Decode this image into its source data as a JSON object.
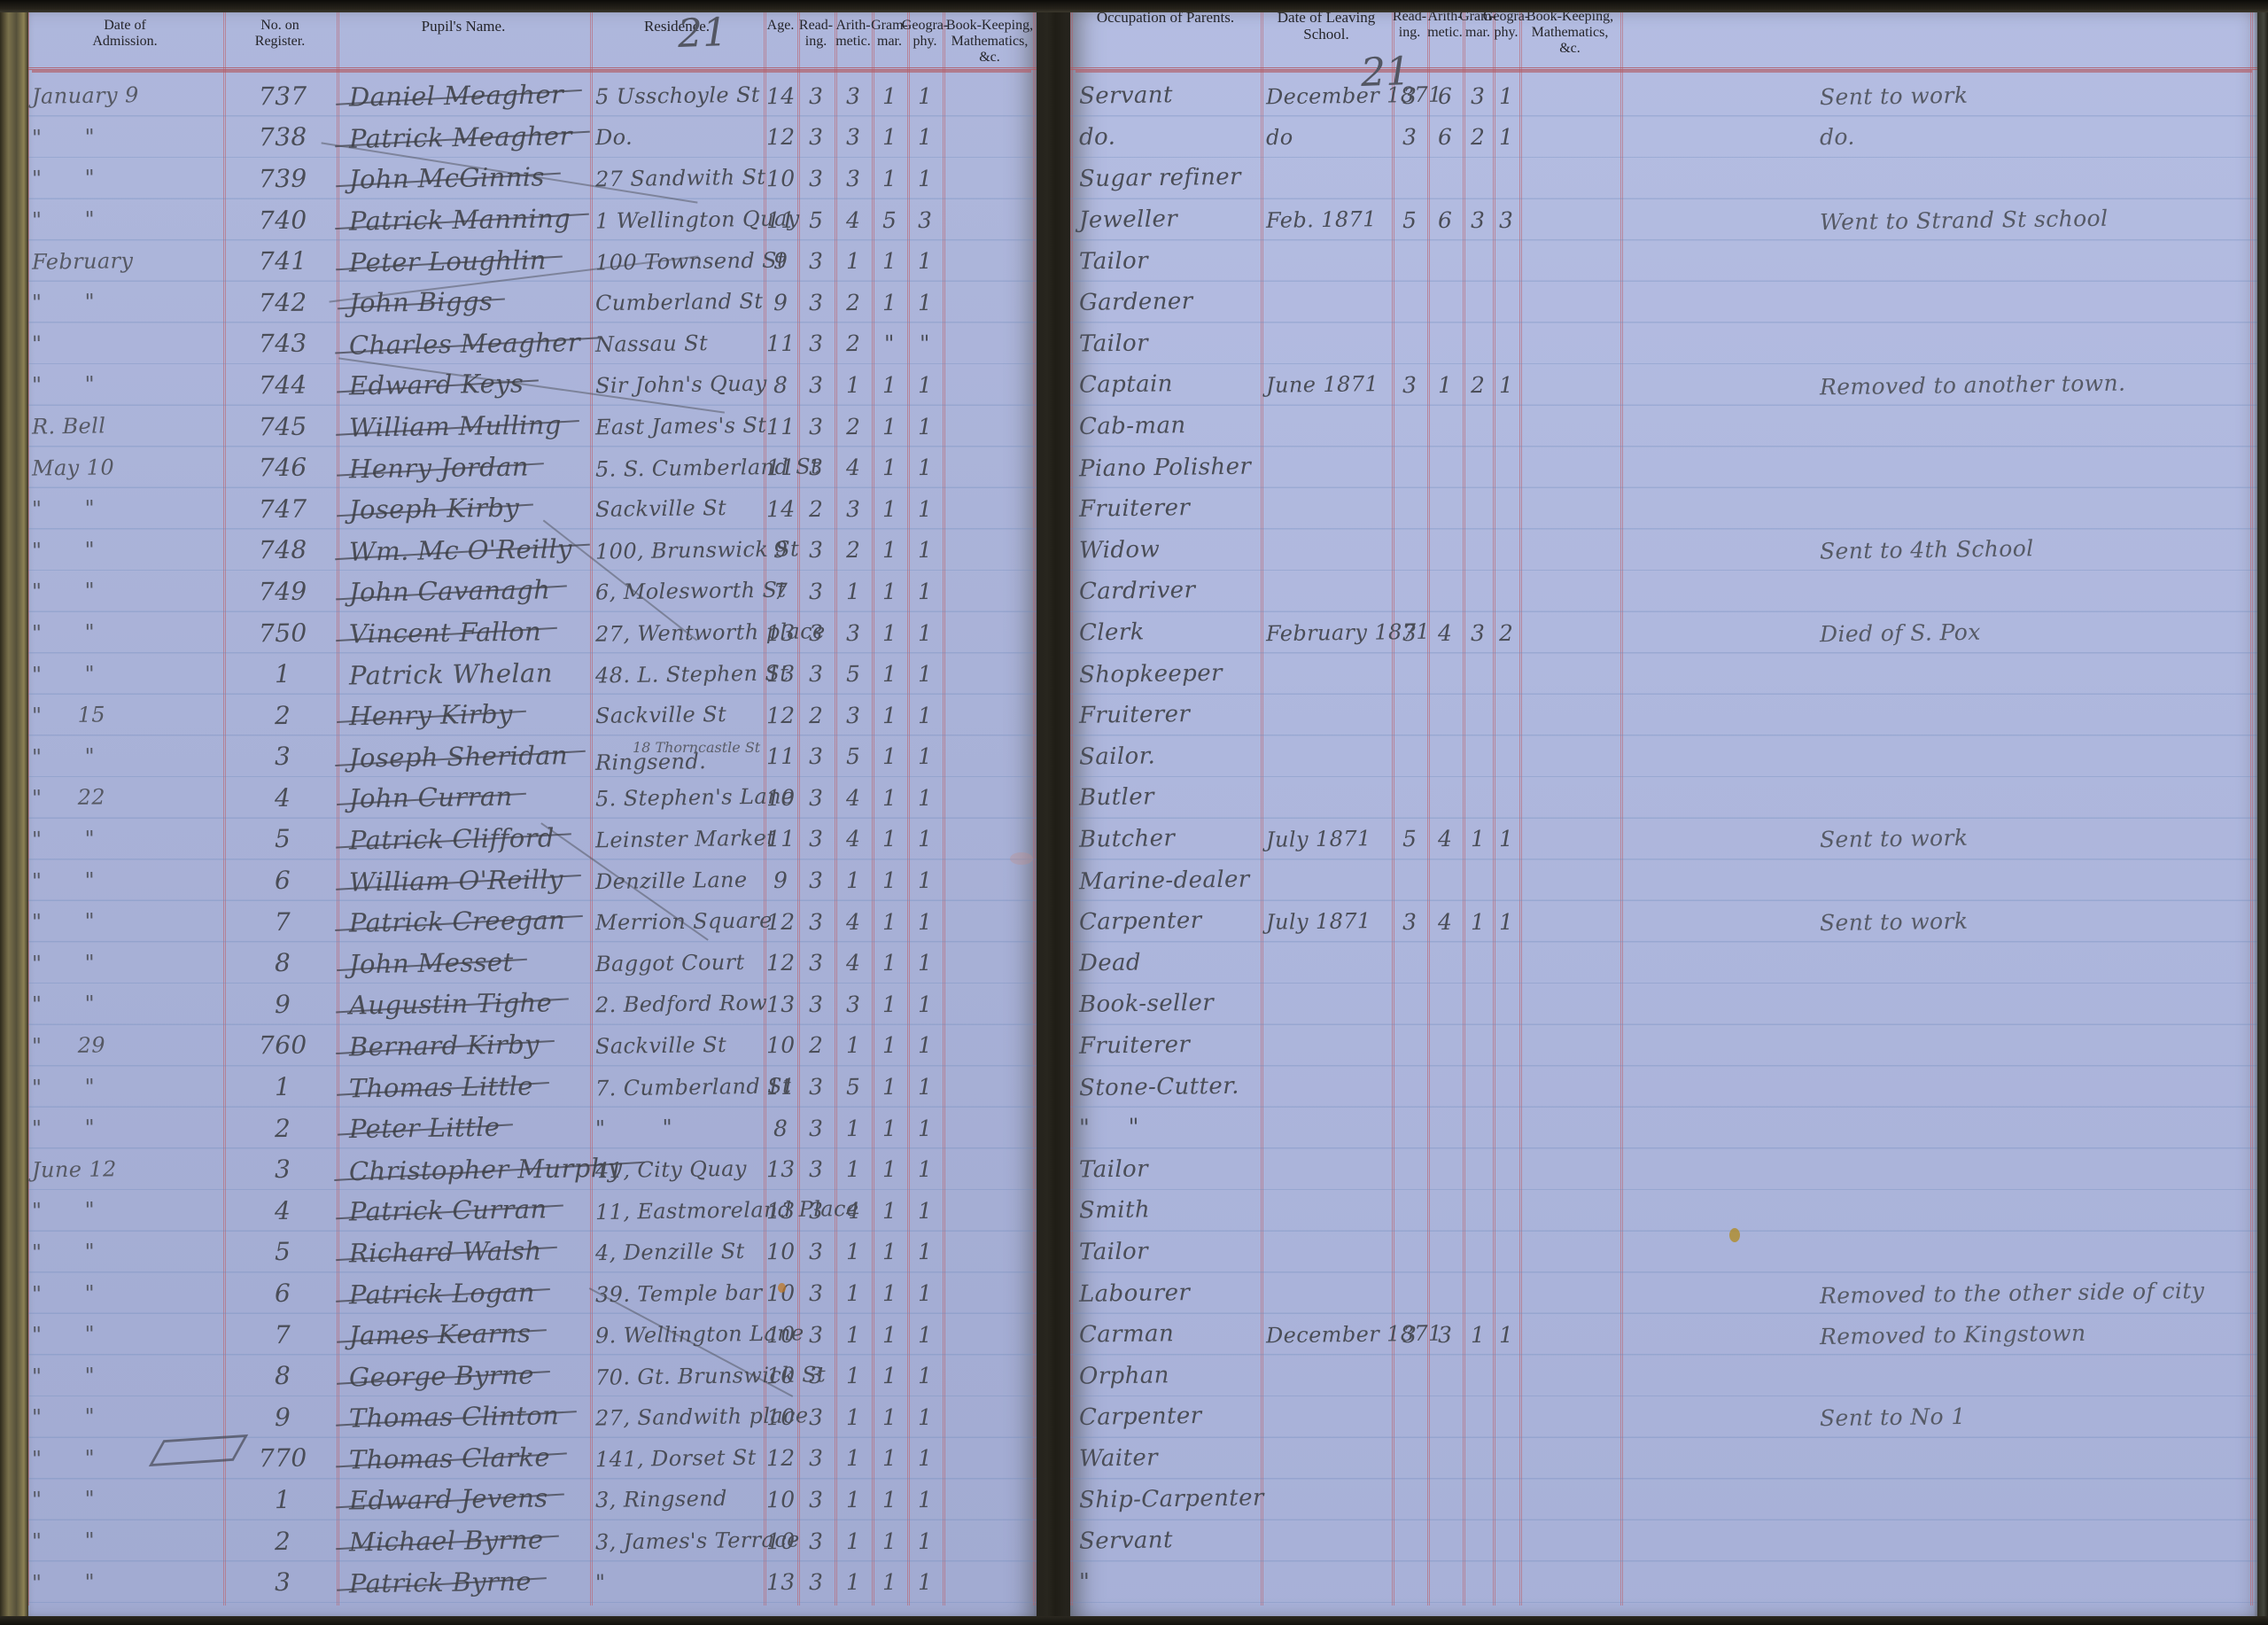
{
  "document": {
    "kind": "handwritten school register spread",
    "page_number_pencil": "21",
    "colors": {
      "paper_left": "#aab3da",
      "paper_right": "#b0b9e0",
      "rule_red": "#ba646e",
      "faint_line_blue": "#6987b9",
      "ink": "#4a4d57",
      "printed_ink": "#25252a",
      "pencil": "#535662"
    },
    "left_page": {
      "headers": {
        "admission": "Date of\nAdmission.",
        "register": "No. on\nRegister.",
        "name": "Pupil's Name.",
        "residence": "Residence.",
        "age": "Age.",
        "reading": "Read-\ning.",
        "arithmetic": "Arith-\nmetic.",
        "grammar": "Gram-\nmar.",
        "geography": "Geogra-\nphy.",
        "bookkeeping": "Book-Keeping,\nMathematics, &c."
      }
    },
    "right_page": {
      "headers": {
        "occupation": "Occupation of Parents.",
        "leaving": "Date of Leaving School.",
        "reading": "Read-\ning.",
        "arithmetic": "Arith-\nmetic.",
        "grammar": "Gram-\nmar.",
        "geography": "Geogra-\nphy.",
        "mathematics": "Book-Keeping,\nMathematics, &c.",
        "remarks": ""
      }
    },
    "rows": [
      {
        "admission": "January 9",
        "register": "737",
        "name": "Daniel Meagher",
        "struck": true,
        "residence": "5 Usschoyle St",
        "age": "14",
        "reading": "3",
        "arithmetic": "3",
        "grammar": "1",
        "geography": "1",
        "occupation": "Servant",
        "leaving": "December 1871",
        "l_reading": "3",
        "l_arithmetic": "6",
        "l_grammar": "3",
        "l_geography": "1",
        "remarks": "Sent to work"
      },
      {
        "admission": "\"      \"",
        "register": "738",
        "name": "Patrick Meagher",
        "struck": true,
        "residence": "Do.",
        "age": "12",
        "reading": "3",
        "arithmetic": "3",
        "grammar": "1",
        "geography": "1",
        "occupation": "do.",
        "leaving": "do",
        "l_reading": "3",
        "l_arithmetic": "6",
        "l_grammar": "2",
        "l_geography": "1",
        "remarks": "do."
      },
      {
        "admission": "\"      \"",
        "register": "739",
        "name": "John McGinnis",
        "struck": true,
        "residence": "27 Sandwith St",
        "age": "10",
        "reading": "3",
        "arithmetic": "3",
        "grammar": "1",
        "geography": "1",
        "occupation": "Sugar refiner"
      },
      {
        "admission": "\"      \"",
        "register": "740",
        "name": "Patrick Manning",
        "struck": true,
        "residence": "1 Wellington Quay",
        "age": "11",
        "reading": "5",
        "arithmetic": "4",
        "grammar": "5",
        "geography": "3",
        "occupation": "Jeweller",
        "leaving": "Feb. 1871",
        "l_reading": "5",
        "l_arithmetic": "6",
        "l_grammar": "3",
        "l_geography": "3",
        "remarks": "Went to Strand St school"
      },
      {
        "admission": "February",
        "register": "741",
        "name": "Peter Loughlin",
        "struck": true,
        "residence": "100 Townsend St",
        "age": "9",
        "reading": "3",
        "arithmetic": "1",
        "grammar": "1",
        "geography": "1",
        "occupation": "Tailor"
      },
      {
        "admission": "\"      \"",
        "register": "742",
        "name": "John Biggs",
        "struck": true,
        "residence": "Cumberland St",
        "age": "9",
        "reading": "3",
        "arithmetic": "2",
        "grammar": "1",
        "geography": "1",
        "occupation": "Gardener"
      },
      {
        "admission": "\"",
        "register": "743",
        "name": "Charles Meagher",
        "struck": true,
        "residence": "Nassau St",
        "age": "11",
        "reading": "3",
        "arithmetic": "2",
        "grammar": "\"",
        "geography": "\"",
        "occupation": "Tailor"
      },
      {
        "admission": "\"      \"",
        "register": "744",
        "name": "Edward Keys",
        "struck": true,
        "residence": "Sir John's Quay",
        "age": "8",
        "reading": "3",
        "arithmetic": "1",
        "grammar": "1",
        "geography": "1",
        "occupation": "Captain",
        "leaving": "June 1871",
        "l_reading": "3",
        "l_arithmetic": "1",
        "l_grammar": "2",
        "l_geography": "1",
        "remarks": "Removed to another town."
      },
      {
        "admission": "R. Bell",
        "register": "745",
        "name": "William Mulling",
        "struck": true,
        "residence": "East James's St",
        "age": "11",
        "reading": "3",
        "arithmetic": "2",
        "grammar": "1",
        "geography": "1",
        "occupation": "Cab-man"
      },
      {
        "admission": "May 10",
        "register": "746",
        "name": "Henry Jordan",
        "struck": true,
        "residence": "5. S. Cumberland St",
        "age": "11",
        "reading": "3",
        "arithmetic": "4",
        "grammar": "1",
        "geography": "1",
        "occupation": "Piano Polisher"
      },
      {
        "admission": "\"      \"",
        "register": "747",
        "name": "Joseph Kirby",
        "struck": true,
        "residence": "Sackville St",
        "age": "14",
        "reading": "2",
        "arithmetic": "3",
        "grammar": "1",
        "geography": "1",
        "occupation": "Fruiterer"
      },
      {
        "admission": "\"      \"",
        "register": "748",
        "name": "Wm. Mc O'Reilly",
        "struck": true,
        "residence": "100, Brunswick St",
        "age": "9",
        "reading": "3",
        "arithmetic": "2",
        "grammar": "1",
        "geography": "1",
        "occupation": "Widow",
        "remarks": "Sent to 4th School"
      },
      {
        "admission": "\"      \"",
        "register": "749",
        "name": "John Cavanagh",
        "struck": true,
        "residence": "6, Molesworth St",
        "age": "7",
        "reading": "3",
        "arithmetic": "1",
        "grammar": "1",
        "geography": "1",
        "occupation": "Cardriver"
      },
      {
        "admission": "\"      \"",
        "register": "750",
        "name": "Vincent Fallon",
        "struck": true,
        "residence": "27, Wentworth place",
        "age": "13",
        "reading": "3",
        "arithmetic": "3",
        "grammar": "1",
        "geography": "1",
        "occupation": "Clerk",
        "leaving": "February 1871",
        "l_reading": "3",
        "l_arithmetic": "4",
        "l_grammar": "3",
        "l_geography": "2",
        "remarks": "Died of S. Pox"
      },
      {
        "admission": "\"      \"",
        "register": "1",
        "name": "Patrick Whelan",
        "struck": false,
        "residence": "48. L. Stephen St",
        "age": "13",
        "reading": "3",
        "arithmetic": "5",
        "grammar": "1",
        "geography": "1",
        "occupation": "Shopkeeper"
      },
      {
        "admission": "\"     15",
        "register": "2",
        "name": "Henry Kirby",
        "struck": true,
        "residence": "Sackville St",
        "age": "12",
        "reading": "2",
        "arithmetic": "3",
        "grammar": "1",
        "geography": "1",
        "occupation": "Fruiterer"
      },
      {
        "admission": "\"      \"",
        "register": "3",
        "name": "Joseph Sheridan",
        "struck": true,
        "residence": "Ringsend.",
        "residence_note": "18 Thorncastle St",
        "age": "11",
        "reading": "3",
        "arithmetic": "5",
        "grammar": "1",
        "geography": "1",
        "occupation": "Sailor."
      },
      {
        "admission": "\"     22",
        "register": "4",
        "name": "John Curran",
        "struck": true,
        "residence": "5. Stephen's Lane",
        "age": "10",
        "reading": "3",
        "arithmetic": "4",
        "grammar": "1",
        "geography": "1",
        "occupation": "Butler"
      },
      {
        "admission": "\"      \"",
        "register": "5",
        "name": "Patrick Clifford",
        "struck": true,
        "residence": "Leinster Market",
        "age": "11",
        "reading": "3",
        "arithmetic": "4",
        "grammar": "1",
        "geography": "1",
        "occupation": "Butcher",
        "leaving": "July 1871",
        "l_reading": "5",
        "l_arithmetic": "4",
        "l_grammar": "1",
        "l_geography": "1",
        "remarks": "Sent to work"
      },
      {
        "admission": "\"      \"",
        "register": "6",
        "name": "William O'Reilly",
        "struck": true,
        "residence": "Denzille Lane",
        "age": "9",
        "reading": "3",
        "arithmetic": "1",
        "grammar": "1",
        "geography": "1",
        "occupation": "Marine-dealer"
      },
      {
        "admission": "\"      \"",
        "register": "7",
        "name": "Patrick Creegan",
        "struck": true,
        "residence": "Merrion Square",
        "age": "12",
        "reading": "3",
        "arithmetic": "4",
        "grammar": "1",
        "geography": "1",
        "occupation": "Carpenter",
        "leaving": "July 1871",
        "l_reading": "3",
        "l_arithmetic": "4",
        "l_grammar": "1",
        "l_geography": "1",
        "remarks": "Sent to work"
      },
      {
        "admission": "\"      \"",
        "register": "8",
        "name": "John Messet",
        "struck": true,
        "residence": "Baggot Court",
        "age": "12",
        "reading": "3",
        "arithmetic": "4",
        "grammar": "1",
        "geography": "1",
        "occupation": "Dead"
      },
      {
        "admission": "\"      \"",
        "register": "9",
        "name": "Augustin Tighe",
        "struck": true,
        "residence": "2. Bedford Row",
        "age": "13",
        "reading": "3",
        "arithmetic": "3",
        "grammar": "1",
        "geography": "1",
        "occupation": "Book-seller"
      },
      {
        "admission": "\"     29",
        "register": "760",
        "name": "Bernard Kirby",
        "struck": true,
        "residence": "Sackville St",
        "age": "10",
        "reading": "2",
        "arithmetic": "1",
        "grammar": "1",
        "geography": "1",
        "occupation": "Fruiterer"
      },
      {
        "admission": "\"      \"",
        "register": "1",
        "name": "Thomas Little",
        "struck": true,
        "residence": "7. Cumberland St",
        "age": "11",
        "reading": "3",
        "arithmetic": "5",
        "grammar": "1",
        "geography": "1",
        "occupation": "Stone-Cutter."
      },
      {
        "admission": "\"      \"",
        "register": "2",
        "name": "Peter Little",
        "struck": true,
        "residence": "\"        \"",
        "age": "8",
        "reading": "3",
        "arithmetic": "1",
        "grammar": "1",
        "geography": "1",
        "occupation": "\"     \""
      },
      {
        "admission": "June 12",
        "register": "3",
        "name": "Christopher Murphy",
        "struck": true,
        "residence": "41, City Quay",
        "age": "13",
        "reading": "3",
        "arithmetic": "1",
        "grammar": "1",
        "geography": "1",
        "occupation": "Tailor"
      },
      {
        "admission": "\"      \"",
        "register": "4",
        "name": "Patrick Curran",
        "struck": true,
        "residence": "11, Eastmoreland Place",
        "age": "13",
        "reading": "3",
        "arithmetic": "4",
        "grammar": "1",
        "geography": "1",
        "occupation": "Smith"
      },
      {
        "admission": "\"      \"",
        "register": "5",
        "name": "Richard Walsh",
        "struck": true,
        "residence": "4, Denzille St",
        "age": "10",
        "reading": "3",
        "arithmetic": "1",
        "grammar": "1",
        "geography": "1",
        "occupation": "Tailor"
      },
      {
        "admission": "\"      \"",
        "register": "6",
        "name": "Patrick Logan",
        "struck": true,
        "residence": "39. Temple bar",
        "age": "10",
        "reading": "3",
        "arithmetic": "1",
        "grammar": "1",
        "geography": "1",
        "occupation": "Labourer",
        "remarks": "Removed to the other side of city"
      },
      {
        "admission": "\"      \"",
        "register": "7",
        "name": "James Kearns",
        "struck": true,
        "residence": "9. Wellington Lane",
        "age": "10",
        "reading": "3",
        "arithmetic": "1",
        "grammar": "1",
        "geography": "1",
        "occupation": "Carman",
        "leaving": "December 1871",
        "l_reading": "3",
        "l_arithmetic": "3",
        "l_grammar": "1",
        "l_geography": "1",
        "remarks": "Removed to Kingstown"
      },
      {
        "admission": "\"      \"",
        "register": "8",
        "name": "George Byrne",
        "struck": true,
        "residence": "70. Gt. Brunswick St",
        "age": "10",
        "reading": "3",
        "arithmetic": "1",
        "grammar": "1",
        "geography": "1",
        "occupation": "Orphan"
      },
      {
        "admission": "\"      \"",
        "register": "9",
        "name": "Thomas Clinton",
        "struck": true,
        "residence": "27, Sandwith place",
        "age": "10",
        "reading": "3",
        "arithmetic": "1",
        "grammar": "1",
        "geography": "1",
        "occupation": "Carpenter",
        "remarks": "Sent to No 1"
      },
      {
        "admission": "\"      \"",
        "register": "770",
        "name": "Thomas Clarke",
        "struck": true,
        "residence": "141, Dorset St",
        "age": "12",
        "reading": "3",
        "arithmetic": "1",
        "grammar": "1",
        "geography": "1",
        "occupation": "Waiter"
      },
      {
        "admission": "\"      \"",
        "register": "1",
        "name": "Edward Jevens",
        "struck": true,
        "residence": "3, Ringsend",
        "age": "10",
        "reading": "3",
        "arithmetic": "1",
        "grammar": "1",
        "geography": "1",
        "occupation": "Ship-Carpenter"
      },
      {
        "admission": "\"      \"",
        "register": "2",
        "name": "Michael Byrne",
        "struck": true,
        "residence": "3, James's Terrace",
        "age": "10",
        "reading": "3",
        "arithmetic": "1",
        "grammar": "1",
        "geography": "1",
        "occupation": "Servant"
      },
      {
        "admission": "\"      \"",
        "register": "3",
        "name": "Patrick Byrne",
        "struck": true,
        "residence": "\"",
        "age": "13",
        "reading": "3",
        "arithmetic": "1",
        "grammar": "1",
        "geography": "1",
        "occupation": "\""
      }
    ]
  }
}
